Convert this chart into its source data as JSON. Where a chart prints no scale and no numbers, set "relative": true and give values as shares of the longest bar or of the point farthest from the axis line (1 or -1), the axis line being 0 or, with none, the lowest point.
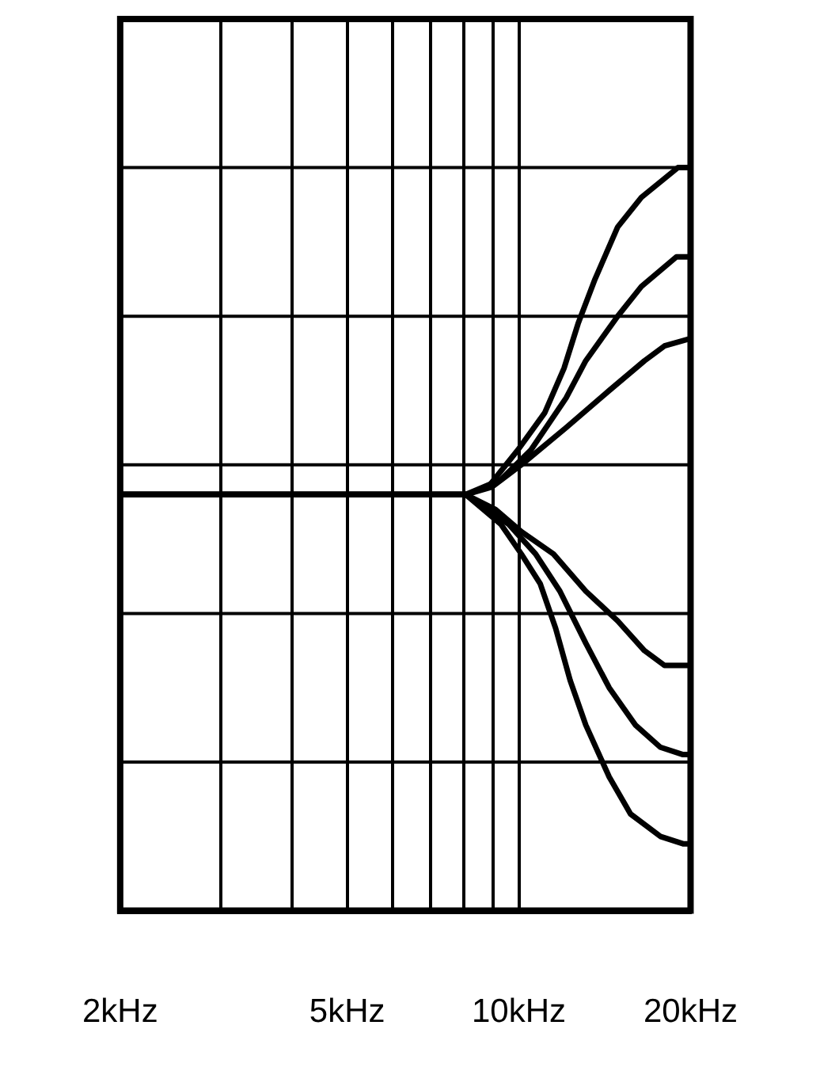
{
  "chart_data": {
    "type": "line",
    "relative": true,
    "xlim": [
      2,
      20
    ],
    "log": "x",
    "grid": true,
    "legend": false,
    "marker": "none",
    "line_style": "solid",
    "xticks": [
      {
        "value": 2,
        "label": "2kHz"
      },
      {
        "value": 3,
        "label": null
      },
      {
        "value": 4,
        "label": null
      },
      {
        "value": 5,
        "label": "5kHz"
      },
      {
        "value": 6,
        "label": null
      },
      {
        "value": 7,
        "label": null
      },
      {
        "value": 8,
        "label": null
      },
      {
        "value": 9,
        "label": null
      },
      {
        "value": 10,
        "label": "10kHz"
      },
      {
        "value": 20,
        "label": "20kHz"
      }
    ],
    "series": [
      {
        "color": "#000000",
        "x": [
          2,
          8.07,
          8.83,
          9.96,
          11.1,
          12,
          12.7,
          13.6,
          14.9,
          16.4,
          19,
          20
        ],
        "values": [
          0.56,
          0.56,
          0.57,
          0.62,
          0.67,
          0.73,
          0.79,
          0.85,
          0.92,
          0.96,
          1,
          1
        ]
      },
      {
        "color": "#000000",
        "x": [
          2,
          8.07,
          9.3,
          10.5,
          12.1,
          13.1,
          14.9,
          16.4,
          18.9,
          20
        ],
        "values": [
          0.56,
          0.56,
          0.58,
          0.62,
          0.69,
          0.74,
          0.8,
          0.84,
          0.88,
          0.88
        ]
      },
      {
        "color": "#000000",
        "x": [
          2,
          8.07,
          8.96,
          10.1,
          12.1,
          14.4,
          16.6,
          18,
          20
        ],
        "values": [
          0.56,
          0.56,
          0.57,
          0.6,
          0.65,
          0.7,
          0.74,
          0.76,
          0.77
        ]
      },
      {
        "color": "#000000",
        "x": [
          2,
          8.07,
          9.1,
          10.1,
          11.5,
          13.1,
          14.9,
          16.6,
          18,
          19.4,
          20
        ],
        "values": [
          0.56,
          0.56,
          0.54,
          0.51,
          0.48,
          0.43,
          0.39,
          0.35,
          0.33,
          0.33,
          0.33
        ]
      },
      {
        "color": "#000000",
        "x": [
          2,
          8.07,
          9.6,
          10.7,
          11.8,
          13.1,
          14.4,
          16,
          17.7,
          19.4,
          20
        ],
        "values": [
          0.56,
          0.56,
          0.52,
          0.48,
          0.43,
          0.36,
          0.3,
          0.25,
          0.22,
          0.21,
          0.21
        ]
      },
      {
        "color": "#000000",
        "x": [
          2,
          8.07,
          9.3,
          10.1,
          10.9,
          11.6,
          12.3,
          13.1,
          14.4,
          15.7,
          17.7,
          19.4,
          20
        ],
        "values": [
          0.56,
          0.56,
          0.52,
          0.48,
          0.44,
          0.38,
          0.31,
          0.25,
          0.18,
          0.13,
          0.1,
          0.09,
          0.09
        ]
      }
    ]
  }
}
